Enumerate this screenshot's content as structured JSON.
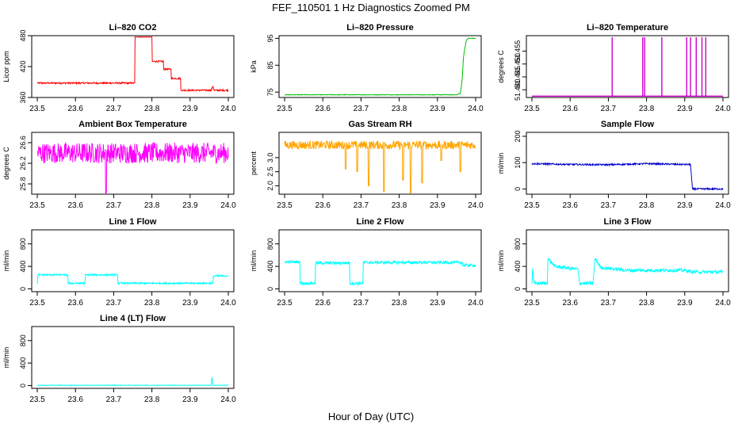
{
  "figure": {
    "title": "FEF_110501  1 Hz Diagnostics Zoomed PM",
    "xlabel": "Hour of Day (UTC)"
  },
  "chart_data": [
    {
      "type": "line",
      "title": "Li–820 CO2",
      "ylabel": "Licor ppm",
      "color": "#ff0000",
      "xlim": [
        23.5,
        24.0
      ],
      "xticks": [
        "23.5",
        "23.6",
        "23.7",
        "23.8",
        "23.9",
        "24.0"
      ],
      "ylim": [
        360,
        480
      ],
      "yticks": [
        "360",
        "420",
        "480"
      ],
      "yticks_values": [
        360,
        420,
        480
      ],
      "noise": 1.5,
      "series": [
        {
          "x": [
            23.5,
            23.755,
            23.755,
            23.8,
            23.8,
            23.83,
            23.83,
            23.85,
            23.85,
            23.875,
            23.875,
            23.95,
            23.955,
            23.96,
            23.963,
            24.0
          ],
          "y": [
            388,
            388,
            478,
            478,
            430,
            430,
            415,
            415,
            397,
            397,
            374,
            374,
            374,
            382,
            374,
            374
          ]
        }
      ]
    },
    {
      "type": "line",
      "title": "Li–820 Pressure",
      "ylabel": "kPa",
      "color": "#00bb00",
      "xlim": [
        23.5,
        24.0
      ],
      "xticks": [
        "23.5",
        "23.6",
        "23.7",
        "23.8",
        "23.9",
        "24.0"
      ],
      "ylim": [
        73,
        96
      ],
      "yticks": [
        "75",
        "85",
        "95"
      ],
      "yticks_values": [
        75,
        85,
        95
      ],
      "noise": 0.1,
      "series": [
        {
          "x": [
            23.5,
            23.95,
            23.96,
            23.965,
            23.968,
            23.975,
            23.98,
            24.0
          ],
          "y": [
            74,
            74,
            74.5,
            80,
            88,
            94,
            95,
            95
          ]
        }
      ]
    },
    {
      "type": "line",
      "title": "Li–820 Temperature",
      "ylabel": "degrees C",
      "color": "#cc00cc",
      "xlim": [
        23.5,
        24.0
      ],
      "xticks": [
        "23.5",
        "23.6",
        "23.7",
        "23.8",
        "23.9",
        "24.0"
      ],
      "ylim": [
        51.437,
        51.461
      ],
      "yticks": [
        "51.440",
        "51.445",
        "51.450",
        "51.455"
      ],
      "yticks_values": [
        51.44,
        51.445,
        51.45,
        51.455
      ],
      "noise": 0,
      "spikes": [
        23.71,
        23.79,
        23.795,
        23.84,
        23.905,
        23.915,
        23.93,
        23.945,
        23.955
      ],
      "series": [
        {
          "x": [
            23.5,
            24.0
          ],
          "y": [
            51.4375,
            51.4375
          ]
        }
      ]
    },
    {
      "type": "line",
      "title": "Ambient Box Temperature",
      "ylabel": "degrees C",
      "color": "#ff00ff",
      "xlim": [
        23.5,
        24.0
      ],
      "xticks": [
        "23.5",
        "23.6",
        "23.7",
        "23.8",
        "23.9",
        "24.0"
      ],
      "ylim": [
        25.6,
        26.8
      ],
      "yticks": [
        "25.8",
        "26.2",
        "26.6"
      ],
      "yticks_values": [
        25.8,
        26.2,
        26.6
      ],
      "noise": 0.2,
      "dip": {
        "x": 23.68,
        "y": 25.6
      },
      "series": [
        {
          "x": [
            23.5,
            24.0
          ],
          "y": [
            26.4,
            26.4
          ]
        }
      ]
    },
    {
      "type": "line",
      "title": "Gas Stream RH",
      "ylabel": "percent",
      "color": "#ffa500",
      "xlim": [
        23.5,
        24.0
      ],
      "xticks": [
        "23.5",
        "23.6",
        "23.7",
        "23.8",
        "23.9",
        "24.0"
      ],
      "ylim": [
        1.7,
        3.9
      ],
      "yticks": [
        "2.0",
        "2.5",
        "3.0"
      ],
      "yticks_values": [
        2.0,
        2.5,
        3.0
      ],
      "noise": 0.15,
      "dips": [
        [
          23.66,
          2.6
        ],
        [
          23.69,
          2.5
        ],
        [
          23.72,
          2.0
        ],
        [
          23.76,
          1.8
        ],
        [
          23.81,
          2.2
        ],
        [
          23.83,
          1.7
        ],
        [
          23.86,
          2.1
        ],
        [
          23.91,
          2.9
        ],
        [
          23.96,
          2.5
        ]
      ],
      "series": [
        {
          "x": [
            23.5,
            24.0
          ],
          "y": [
            3.45,
            3.45
          ]
        }
      ]
    },
    {
      "type": "line",
      "title": "Sample Flow",
      "ylabel": "ml/min",
      "color": "#0000cc",
      "xlim": [
        23.5,
        24.0
      ],
      "xticks": [
        "23.5",
        "23.6",
        "23.7",
        "23.8",
        "23.9",
        "24.0"
      ],
      "ylim": [
        -20,
        215
      ],
      "yticks": [
        "0",
        "100",
        "200"
      ],
      "yticks_values": [
        0,
        100,
        200
      ],
      "noise": 3,
      "series": [
        {
          "x": [
            23.5,
            23.6,
            23.7,
            23.8,
            23.9,
            23.915,
            23.92,
            24.0
          ],
          "y": [
            96,
            93,
            92,
            96,
            93,
            93,
            0,
            0
          ]
        }
      ]
    },
    {
      "type": "line",
      "title": "Line 1 Flow",
      "ylabel": "ml/min",
      "color": "#00ffff",
      "xlim": [
        23.5,
        24.0
      ],
      "xticks": [
        "23.5",
        "23.6",
        "23.7",
        "23.8",
        "23.9",
        "24.0"
      ],
      "ylim": [
        -50,
        1050
      ],
      "yticks": [
        "0",
        "400",
        "800"
      ],
      "yticks_values": [
        0,
        400,
        800
      ],
      "noise": 15,
      "series": [
        {
          "x": [
            23.5,
            23.502,
            23.58,
            23.58,
            23.625,
            23.625,
            23.71,
            23.71,
            23.96,
            23.96,
            24.0
          ],
          "y": [
            100,
            250,
            250,
            100,
            100,
            250,
            250,
            100,
            100,
            230,
            230
          ]
        }
      ]
    },
    {
      "type": "line",
      "title": "Line 2 Flow",
      "ylabel": "ml/min",
      "color": "#00ffff",
      "xlim": [
        23.5,
        24.0
      ],
      "xticks": [
        "23.5",
        "23.6",
        "23.7",
        "23.8",
        "23.9",
        "24.0"
      ],
      "ylim": [
        -50,
        1050
      ],
      "yticks": [
        "0",
        "400",
        "800"
      ],
      "yticks_values": [
        0,
        400,
        800
      ],
      "noise": 25,
      "series": [
        {
          "x": [
            23.5,
            23.54,
            23.54,
            23.58,
            23.58,
            23.67,
            23.67,
            23.705,
            23.705,
            23.965,
            23.965,
            24.0
          ],
          "y": [
            480,
            480,
            100,
            100,
            460,
            460,
            100,
            100,
            470,
            470,
            420,
            420
          ]
        }
      ]
    },
    {
      "type": "line",
      "title": "Line 3 Flow",
      "ylabel": "ml/min",
      "color": "#00ffff",
      "xlim": [
        23.5,
        24.0
      ],
      "xticks": [
        "23.5",
        "23.6",
        "23.7",
        "23.8",
        "23.9",
        "24.0"
      ],
      "ylim": [
        -50,
        1050
      ],
      "yticks": [
        "0",
        "400",
        "800"
      ],
      "yticks_values": [
        0,
        400,
        800
      ],
      "noise": 30,
      "series": [
        {
          "x": [
            23.5,
            23.502,
            23.505,
            23.54,
            23.542,
            23.56,
            23.62,
            23.625,
            23.66,
            23.665,
            23.68,
            23.75,
            23.9,
            23.92,
            24.0
          ],
          "y": [
            100,
            380,
            100,
            100,
            540,
            400,
            350,
            100,
            100,
            540,
            380,
            330,
            330,
            300,
            300
          ]
        }
      ]
    },
    {
      "type": "line",
      "title": "Line 4 (LT) Flow",
      "ylabel": "ml/min",
      "color": "#00ffff",
      "xlim": [
        23.5,
        24.0
      ],
      "xticks": [
        "23.5",
        "23.6",
        "23.7",
        "23.8",
        "23.9",
        "24.0"
      ],
      "ylim": [
        -50,
        1050
      ],
      "yticks": [
        "0",
        "400",
        "800"
      ],
      "yticks_values": [
        0,
        400,
        800
      ],
      "noise": 5,
      "series": [
        {
          "x": [
            23.5,
            23.955,
            23.957,
            23.96,
            23.962,
            24.0
          ],
          "y": [
            5,
            5,
            150,
            10,
            5,
            5
          ]
        }
      ]
    }
  ]
}
